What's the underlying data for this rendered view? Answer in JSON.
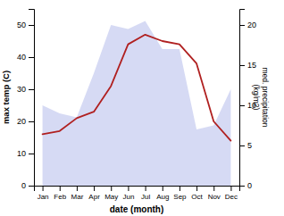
{
  "chart_data": {
    "type": "line",
    "xlabel": "date (month)",
    "ylabel": "max temp (C)",
    "y2label": "med. precipitation\n(kg/m2)",
    "categories": [
      "Jan",
      "Feb",
      "Mar",
      "Apr",
      "May",
      "Jun",
      "Jul",
      "Aug",
      "Sep",
      "Oct",
      "Nov",
      "Dec"
    ],
    "series": [
      {
        "type": "area",
        "axis": "y2",
        "color": "#c8cef0",
        "values": [
          10,
          9,
          8.5,
          14,
          20,
          19.5,
          20.5,
          17,
          17,
          7,
          7.5,
          12
        ]
      },
      {
        "type": "line",
        "color": "#b02020",
        "values": [
          16,
          17,
          21,
          23,
          31,
          44,
          47,
          45,
          44,
          38,
          20,
          14
        ]
      }
    ],
    "ylim": [
      0,
      55
    ],
    "yticks": [
      0,
      10,
      20,
      30,
      40,
      50
    ],
    "y2lim": [
      0,
      22
    ],
    "y2ticks": [
      0,
      5,
      10,
      15,
      20
    ],
    "grid": false
  }
}
